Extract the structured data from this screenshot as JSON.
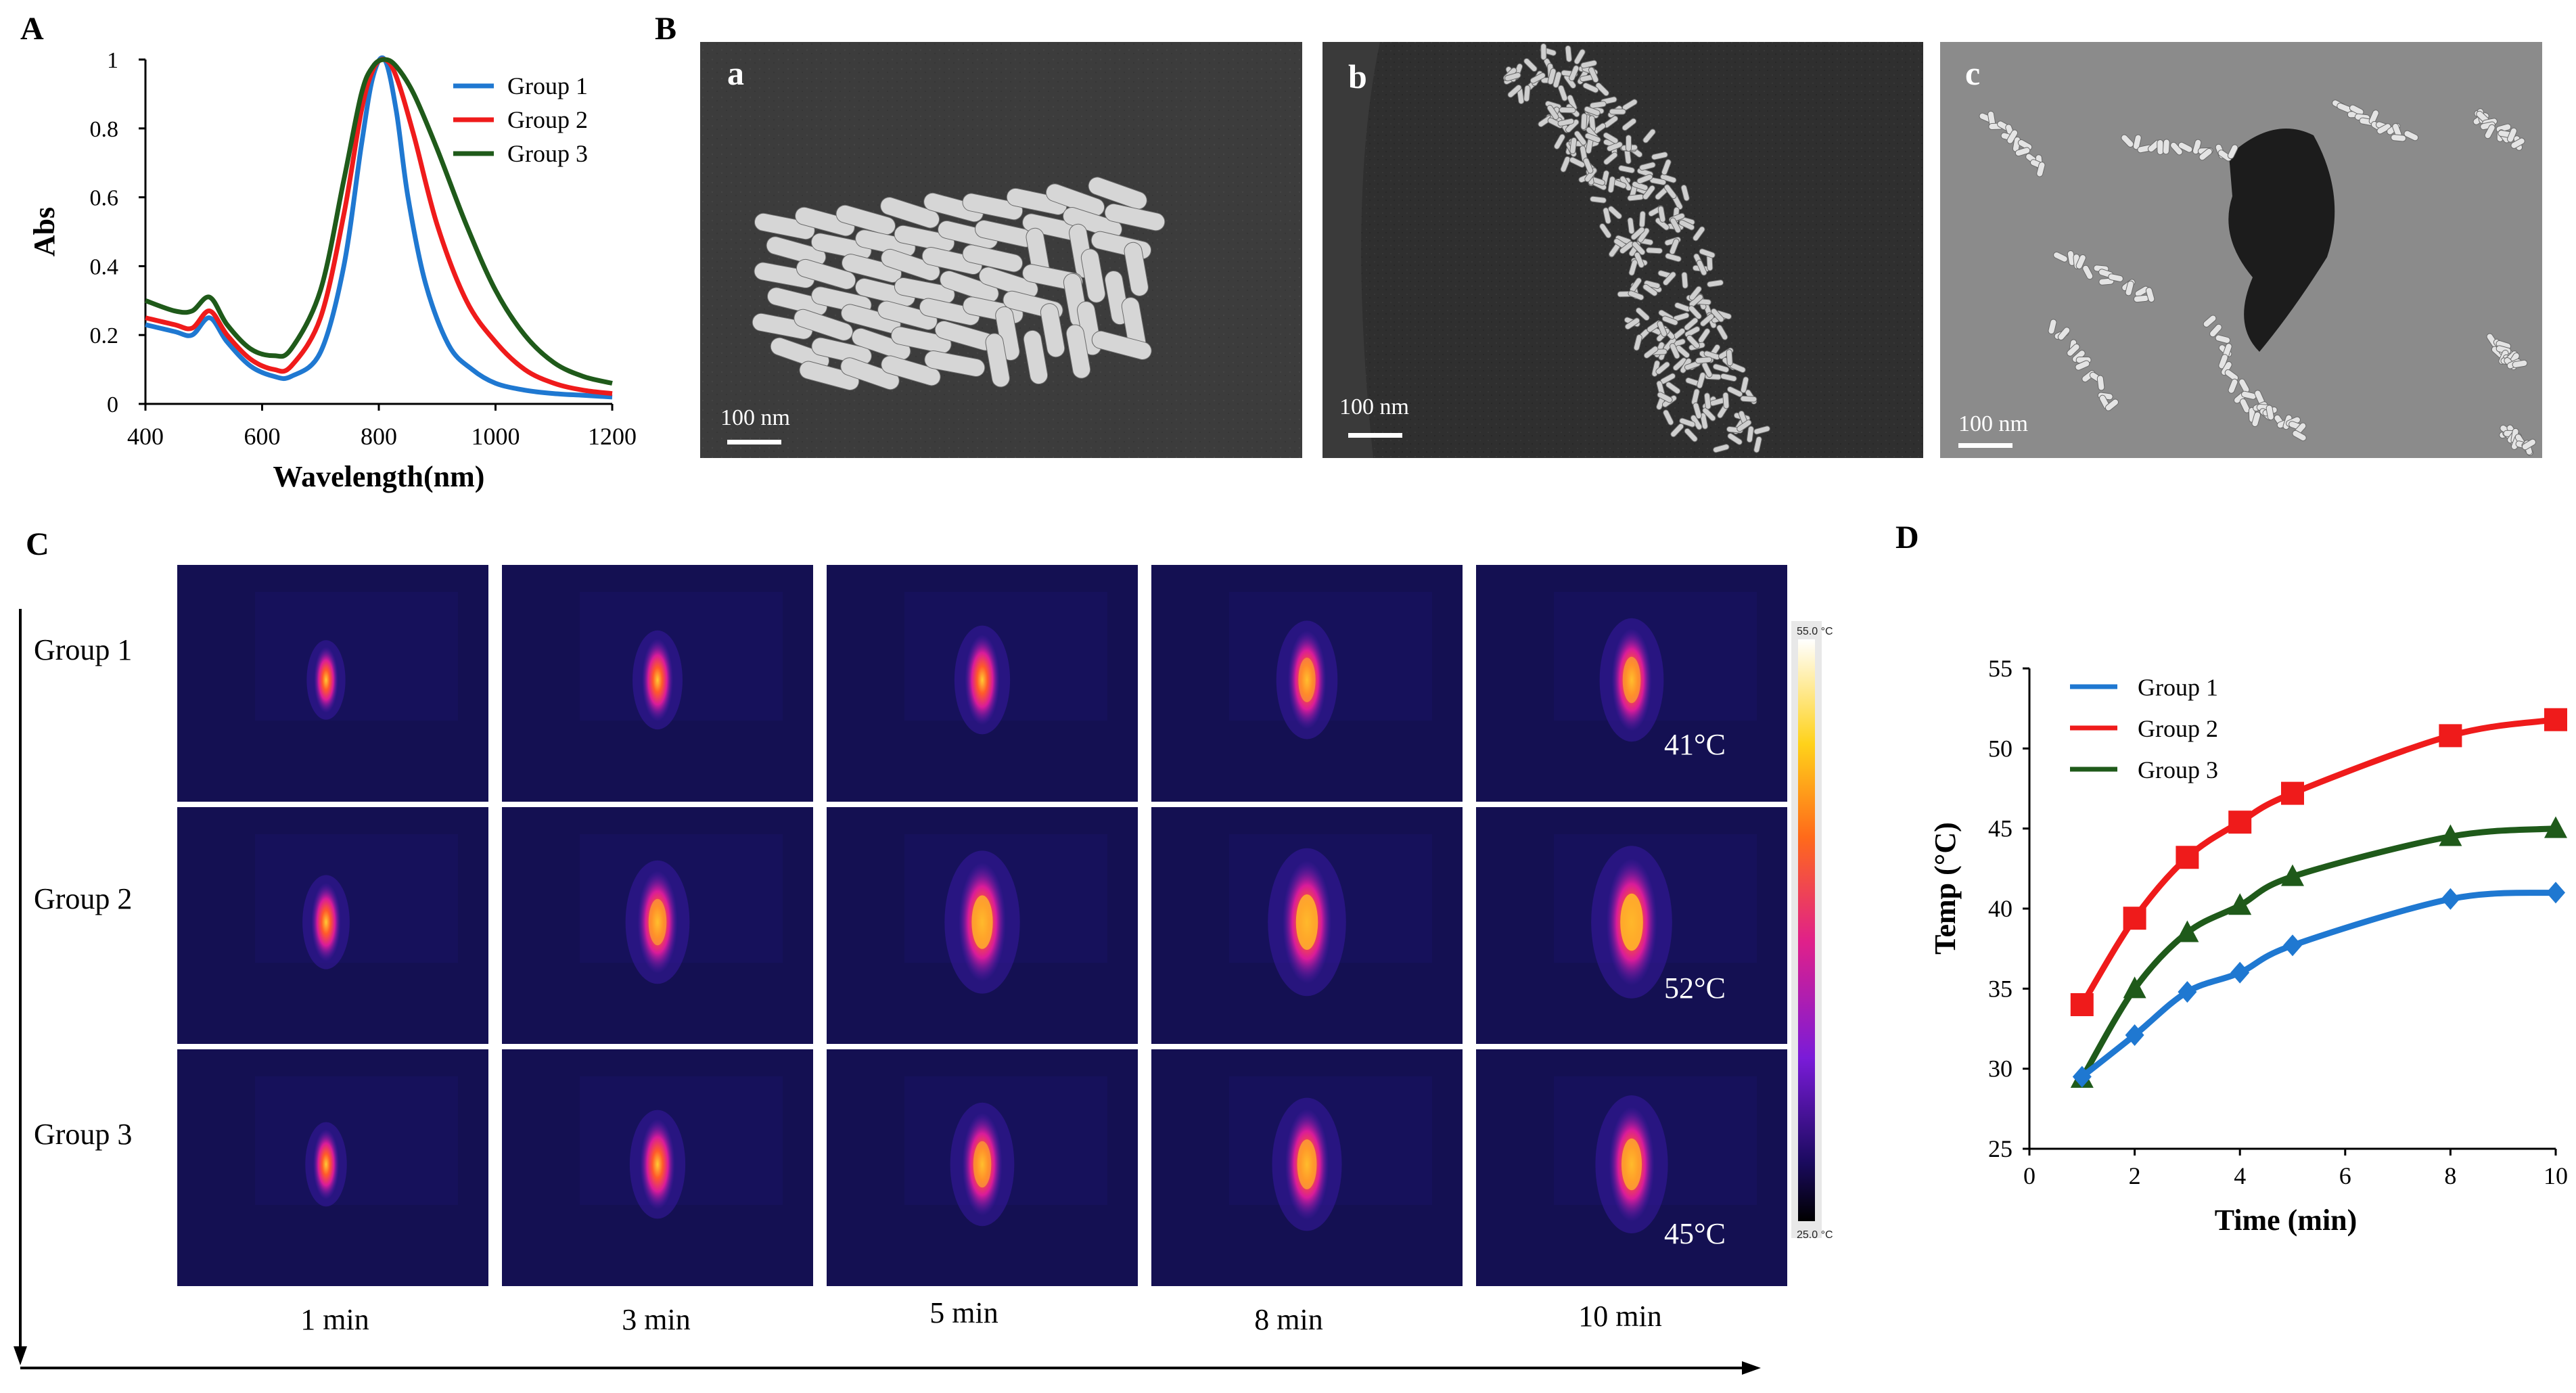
{
  "panel_labels": {
    "A": "A",
    "B": "B",
    "C": "C",
    "D": "D"
  },
  "colors": {
    "group1": "#1f78d1",
    "group2": "#ef1b1b",
    "group3": "#1f5a1a",
    "group1_markers": "#1f78d1",
    "thermal_bg": "#141052"
  },
  "panel_b": {
    "images": [
      {
        "label": "a",
        "scale_bar": "100 nm"
      },
      {
        "label": "b",
        "scale_bar": "100 nm"
      },
      {
        "label": "c",
        "scale_bar": "100 nm"
      }
    ]
  },
  "panel_c": {
    "rows": [
      "Group 1",
      "Group 2",
      "Group 3"
    ],
    "columns": [
      "1 min",
      "3 min",
      "5 min",
      "8 min",
      "10 min"
    ],
    "final_temps": [
      "41°C",
      "52°C",
      "45°C"
    ],
    "colorbar": {
      "max_label": "55.0 °C",
      "min_label": "25.0 °C"
    },
    "spot_intensity": [
      [
        0.15,
        0.35,
        0.45,
        0.55,
        0.6
      ],
      [
        0.3,
        0.6,
        0.8,
        0.85,
        0.9
      ],
      [
        0.2,
        0.45,
        0.6,
        0.7,
        0.75
      ]
    ]
  },
  "chart_data": [
    {
      "type": "line",
      "panel": "A",
      "xlabel": "Wavelength(nm)",
      "ylabel": "Abs",
      "xlim": [
        400,
        1200
      ],
      "ylim": [
        0,
        1
      ],
      "xticks": [
        "400",
        "600",
        "800",
        "1000",
        "1200"
      ],
      "yticks": [
        "0",
        "0.2",
        "0.4",
        "0.6",
        "0.8",
        "1"
      ],
      "legend_position": "top-right",
      "series": [
        {
          "name": "Group 1",
          "x": [
            400,
            450,
            480,
            510,
            540,
            580,
            620,
            650,
            700,
            740,
            770,
            790,
            810,
            830,
            850,
            880,
            920,
            960,
            1000,
            1050,
            1100,
            1150,
            1200
          ],
          "y": [
            0.23,
            0.21,
            0.2,
            0.25,
            0.18,
            0.11,
            0.08,
            0.08,
            0.15,
            0.4,
            0.75,
            0.95,
            1.0,
            0.85,
            0.6,
            0.35,
            0.17,
            0.1,
            0.06,
            0.04,
            0.03,
            0.025,
            0.02
          ]
        },
        {
          "name": "Group 2",
          "x": [
            400,
            450,
            480,
            510,
            540,
            580,
            620,
            650,
            700,
            740,
            770,
            790,
            810,
            830,
            860,
            900,
            950,
            1000,
            1050,
            1100,
            1150,
            1200
          ],
          "y": [
            0.25,
            0.23,
            0.22,
            0.27,
            0.2,
            0.13,
            0.1,
            0.11,
            0.25,
            0.55,
            0.85,
            0.97,
            1.0,
            0.95,
            0.78,
            0.52,
            0.3,
            0.18,
            0.1,
            0.06,
            0.04,
            0.03
          ]
        },
        {
          "name": "Group 3",
          "x": [
            400,
            450,
            480,
            510,
            540,
            580,
            620,
            650,
            700,
            740,
            770,
            790,
            810,
            830,
            860,
            900,
            950,
            1000,
            1050,
            1100,
            1150,
            1200
          ],
          "y": [
            0.3,
            0.27,
            0.27,
            0.31,
            0.23,
            0.16,
            0.14,
            0.16,
            0.33,
            0.65,
            0.9,
            0.98,
            1.0,
            0.98,
            0.9,
            0.74,
            0.52,
            0.33,
            0.2,
            0.12,
            0.08,
            0.06
          ]
        }
      ]
    },
    {
      "type": "line",
      "panel": "D",
      "xlabel": "Time (min)",
      "ylabel": "Temp (°C)",
      "xlim": [
        0,
        10
      ],
      "ylim": [
        25,
        55
      ],
      "xticks": [
        "0",
        "2",
        "4",
        "6",
        "8",
        "10"
      ],
      "yticks": [
        "25",
        "30",
        "35",
        "40",
        "45",
        "50",
        "55"
      ],
      "legend_position": "top-left",
      "series": [
        {
          "name": "Group 1",
          "marker": "diamond",
          "x": [
            1,
            2,
            3,
            4,
            5,
            8,
            10
          ],
          "y": [
            29.5,
            32.1,
            34.8,
            36.0,
            37.7,
            40.6,
            41.0
          ]
        },
        {
          "name": "Group 2",
          "marker": "square",
          "x": [
            1,
            2,
            3,
            4,
            5,
            8,
            10
          ],
          "y": [
            34.0,
            39.4,
            43.2,
            45.4,
            47.2,
            50.8,
            51.8
          ]
        },
        {
          "name": "Group 3",
          "marker": "triangle",
          "x": [
            1,
            2,
            3,
            4,
            5,
            8,
            10
          ],
          "y": [
            29.4,
            35.0,
            38.5,
            40.2,
            42.0,
            44.5,
            45.0
          ]
        }
      ]
    }
  ]
}
